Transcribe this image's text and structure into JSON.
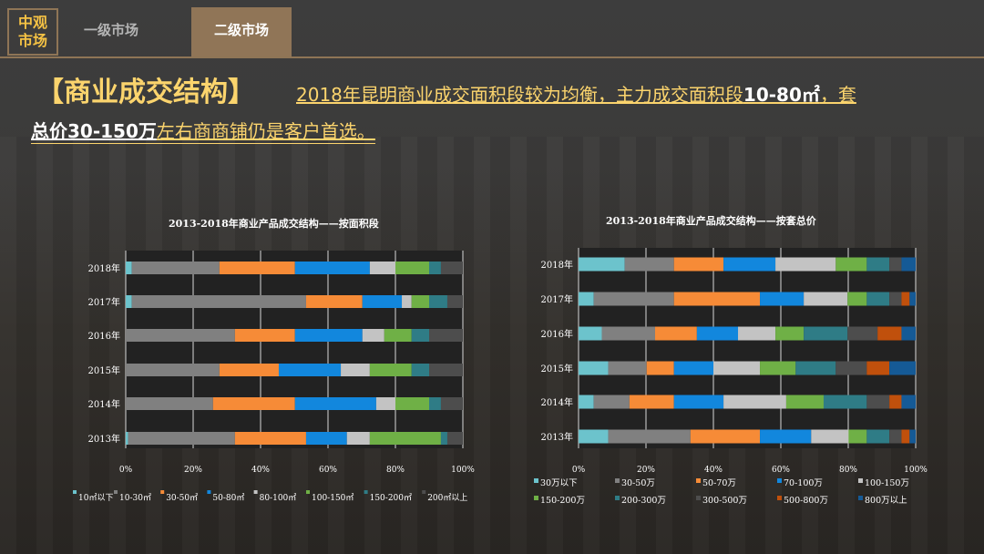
{
  "nav": {
    "logo": "中观\n市场",
    "logo_l1": "中观",
    "logo_l2": "市场",
    "tab_primary": "一级市场",
    "tab_secondary": "二级市场",
    "active_tab": "二级市场"
  },
  "header": {
    "title": "【商业成交结构】",
    "sub_a": "2018年昆明商业成交面积段较为均衡，主力成交面积段",
    "sub_b": "10-80㎡",
    "sub_c": "，套",
    "sub_d": "总价30-150万",
    "sub_e": "左右商商铺仍是客户首选。"
  },
  "chart_data": [
    {
      "type": "bar",
      "stacked": true,
      "orientation": "horizontal",
      "title": "2013-2018年商业产品成交结构——按面积段",
      "categories": [
        "2018年",
        "2017年",
        "2016年",
        "2015年",
        "2014年",
        "2013年"
      ],
      "xlim": [
        0,
        100
      ],
      "xticks": [
        "0%",
        "20%",
        "40%",
        "60%",
        "80%",
        "100%"
      ],
      "legend_position": "bottom",
      "grid": true,
      "series": [
        {
          "name": "10㎡以下",
          "color": "#6cc3cc",
          "values": [
            1.8,
            1.8,
            0,
            0,
            0,
            0.7
          ]
        },
        {
          "name": "10-30㎡",
          "color": "#808080",
          "values": [
            26,
            51.7,
            32.4,
            27.8,
            25.9,
            31.7
          ]
        },
        {
          "name": "30-50㎡",
          "color": "#f68b37",
          "values": [
            22.4,
            16.7,
            17.8,
            17.6,
            24.3,
            21.1
          ]
        },
        {
          "name": "50-80㎡",
          "color": "#1287dd",
          "values": [
            22.2,
            11.7,
            20,
            18.4,
            24.1,
            12.1
          ]
        },
        {
          "name": "80-100㎡",
          "color": "#c3c3c3",
          "values": [
            7.6,
            2.9,
            6.5,
            8.6,
            5.7,
            6.8
          ]
        },
        {
          "name": "100-150㎡",
          "color": "#6fb046",
          "values": [
            10,
            5.2,
            8.1,
            12.4,
            10,
            21.1
          ]
        },
        {
          "name": "150-200㎡",
          "color": "#2f7c86",
          "values": [
            3.5,
            5.4,
            5.2,
            5.2,
            3.5,
            1.9
          ]
        },
        {
          "name": "200㎡以上",
          "color": "#4d4d4d",
          "values": [
            6.5,
            4.6,
            10,
            10,
            6.5,
            4.6
          ]
        }
      ]
    },
    {
      "type": "bar",
      "stacked": true,
      "orientation": "horizontal",
      "title": "2013-2018年商业产品成交结构——按套总价",
      "categories": [
        "2018年",
        "2017年",
        "2016年",
        "2015年",
        "2014年",
        "2013年"
      ],
      "xlim": [
        0,
        100
      ],
      "xticks": [
        "0%",
        "20%",
        "40%",
        "60%",
        "80%",
        "100%"
      ],
      "legend_position": "bottom",
      "grid": true,
      "series": [
        {
          "name": "30万以下",
          "color": "#6cc3cc",
          "values": [
            13.7,
            4.5,
            6.9,
            8.8,
            4.5,
            8.8
          ]
        },
        {
          "name": "30-50万",
          "color": "#808080",
          "values": [
            14.6,
            23.8,
            15.8,
            11.4,
            10.6,
            24.4
          ]
        },
        {
          "name": "50-70万",
          "color": "#f68b37",
          "values": [
            14.7,
            25.5,
            12.4,
            8.1,
            13.2,
            20.6
          ]
        },
        {
          "name": "70-100万",
          "color": "#1287dd",
          "values": [
            15.4,
            13,
            12.2,
            11.7,
            14.7,
            15.2
          ]
        },
        {
          "name": "100-150万",
          "color": "#c3c3c3",
          "values": [
            17.9,
            13,
            11.1,
            13.8,
            18.6,
            11.1
          ]
        },
        {
          "name": "150-200万",
          "color": "#6fb046",
          "values": [
            9.2,
            5.7,
            8.4,
            10.6,
            11.1,
            5.4
          ]
        },
        {
          "name": "200-300万",
          "color": "#2f7c86",
          "values": [
            6.7,
            6.7,
            13,
            11.9,
            12.8,
            6.7
          ]
        },
        {
          "name": "300-500万",
          "color": "#4d4d4d",
          "values": [
            3.6,
            3.6,
            8.9,
            9.2,
            6.7,
            3.6
          ]
        },
        {
          "name": "500-800万",
          "color": "#c0500c",
          "values": [
            0,
            2.4,
            7.1,
            6.7,
            3.6,
            2.4
          ]
        },
        {
          "name": "800万以上",
          "color": "#155a96",
          "values": [
            4.2,
            1.8,
            4.2,
            7.8,
            4.2,
            1.8
          ]
        }
      ]
    }
  ]
}
